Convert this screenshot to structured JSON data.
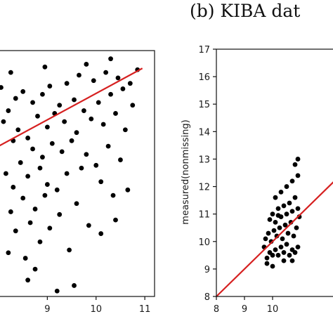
{
  "chart_data": [
    {
      "type": "scatter",
      "panel": "left",
      "title": "",
      "xlabel": "",
      "ylabel": "",
      "xlim": [
        8.0,
        11.2
      ],
      "ylim": [
        8.2,
        17.2
      ],
      "x_ticks": [
        9,
        10,
        11
      ],
      "y_ticks": [],
      "grid": false,
      "colors": {
        "points": "#000000",
        "fit_line": "#d62020"
      },
      "fit_line": [
        [
          8.0,
          13.7
        ],
        [
          10.95,
          16.55
        ]
      ],
      "series": [
        {
          "points": [
            [
              8.05,
              15.85
            ],
            [
              8.1,
              14.6
            ],
            [
              8.15,
              12.7
            ],
            [
              8.2,
              9.8
            ],
            [
              8.2,
              15.0
            ],
            [
              8.25,
              11.3
            ],
            [
              8.3,
              13.9
            ],
            [
              8.3,
              12.2
            ],
            [
              8.35,
              15.45
            ],
            [
              8.35,
              10.6
            ],
            [
              8.4,
              14.3
            ],
            [
              8.45,
              13.1
            ],
            [
              8.5,
              11.8
            ],
            [
              8.5,
              15.7
            ],
            [
              8.55,
              9.6
            ],
            [
              8.6,
              14.0
            ],
            [
              8.6,
              12.6
            ],
            [
              8.65,
              10.9
            ],
            [
              8.7,
              15.3
            ],
            [
              8.7,
              13.6
            ],
            [
              8.75,
              11.4
            ],
            [
              8.8,
              14.8
            ],
            [
              8.85,
              12.9
            ],
            [
              8.85,
              10.2
            ],
            [
              8.9,
              15.6
            ],
            [
              8.9,
              13.3
            ],
            [
              8.95,
              11.9
            ],
            [
              9.0,
              14.4
            ],
            [
              9.0,
              12.3
            ],
            [
              9.05,
              15.9
            ],
            [
              9.05,
              10.7
            ],
            [
              9.1,
              13.8
            ],
            [
              9.15,
              14.9
            ],
            [
              9.2,
              12.1
            ],
            [
              9.25,
              15.2
            ],
            [
              9.25,
              11.2
            ],
            [
              9.3,
              13.5
            ],
            [
              9.35,
              14.6
            ],
            [
              9.4,
              16.0
            ],
            [
              9.4,
              12.7
            ],
            [
              9.45,
              9.9
            ],
            [
              9.5,
              13.9
            ],
            [
              9.55,
              15.4
            ],
            [
              9.6,
              11.6
            ],
            [
              9.6,
              14.2
            ],
            [
              9.65,
              16.3
            ],
            [
              9.7,
              12.9
            ],
            [
              9.75,
              15.0
            ],
            [
              9.8,
              13.4
            ],
            [
              9.85,
              10.8
            ],
            [
              9.9,
              14.7
            ],
            [
              9.95,
              16.1
            ],
            [
              10.0,
              13.0
            ],
            [
              10.05,
              15.3
            ],
            [
              10.1,
              12.4
            ],
            [
              10.15,
              14.5
            ],
            [
              10.2,
              16.4
            ],
            [
              10.25,
              13.7
            ],
            [
              10.3,
              15.6
            ],
            [
              10.35,
              11.9
            ],
            [
              10.4,
              14.9
            ],
            [
              10.45,
              16.2
            ],
            [
              10.5,
              13.2
            ],
            [
              10.55,
              15.8
            ],
            [
              10.6,
              14.3
            ],
            [
              10.7,
              16.0
            ],
            [
              10.75,
              15.2
            ],
            [
              10.85,
              16.5
            ],
            [
              9.2,
              8.4
            ],
            [
              8.6,
              8.8
            ],
            [
              8.75,
              9.2
            ],
            [
              9.55,
              8.6
            ],
            [
              10.1,
              10.5
            ],
            [
              10.4,
              11.0
            ],
            [
              10.65,
              12.1
            ],
            [
              8.25,
              16.4
            ],
            [
              8.95,
              16.6
            ],
            [
              9.8,
              16.7
            ],
            [
              10.3,
              16.9
            ]
          ]
        }
      ]
    },
    {
      "type": "scatter",
      "panel": "right",
      "title": "(b) KIBA dat",
      "xlabel": "",
      "ylabel": "measured(nonmissing)",
      "xlim": [
        8,
        12.5
      ],
      "ylim": [
        8,
        17
      ],
      "x_ticks": [
        8,
        9,
        10
      ],
      "y_ticks": [
        8,
        9,
        10,
        11,
        12,
        13,
        14,
        15,
        16,
        17
      ],
      "grid": false,
      "colors": {
        "points": "#000000",
        "fit_line": "#d62020"
      },
      "fit_line": [
        [
          8,
          8
        ],
        [
          12.5,
          12.5
        ]
      ],
      "series": [
        {
          "points": [
            [
              9.8,
              9.4
            ],
            [
              9.9,
              9.6
            ],
            [
              10.0,
              9.5
            ],
            [
              10.1,
              9.7
            ],
            [
              10.2,
              9.5
            ],
            [
              10.3,
              9.8
            ],
            [
              10.4,
              9.6
            ],
            [
              10.5,
              9.9
            ],
            [
              10.6,
              9.5
            ],
            [
              10.7,
              9.7
            ],
            [
              10.8,
              9.6
            ],
            [
              9.75,
              10.1
            ],
            [
              9.85,
              10.3
            ],
            [
              9.95,
              10.0
            ],
            [
              10.05,
              10.4
            ],
            [
              10.15,
              10.2
            ],
            [
              10.25,
              10.5
            ],
            [
              10.35,
              10.1
            ],
            [
              10.45,
              10.6
            ],
            [
              10.55,
              10.3
            ],
            [
              10.65,
              10.7
            ],
            [
              10.75,
              10.2
            ],
            [
              10.85,
              10.5
            ],
            [
              9.9,
              10.8
            ],
            [
              10.0,
              11.0
            ],
            [
              10.1,
              10.7
            ],
            [
              10.2,
              11.2
            ],
            [
              10.3,
              10.9
            ],
            [
              10.4,
              11.3
            ],
            [
              10.5,
              11.0
            ],
            [
              10.6,
              11.4
            ],
            [
              10.7,
              11.1
            ],
            [
              10.8,
              11.6
            ],
            [
              10.9,
              11.2
            ],
            [
              10.1,
              11.6
            ],
            [
              10.3,
              11.8
            ],
            [
              10.5,
              12.0
            ],
            [
              10.7,
              12.2
            ],
            [
              10.9,
              12.4
            ],
            [
              10.8,
              12.8
            ],
            [
              10.9,
              13.0
            ],
            [
              10.7,
              9.3
            ],
            [
              10.4,
              9.3
            ],
            [
              10.9,
              9.8
            ],
            [
              10.95,
              10.9
            ],
            [
              10.2,
              10.95
            ],
            [
              9.7,
              9.8
            ],
            [
              9.8,
              9.2
            ],
            [
              10.0,
              9.1
            ]
          ]
        }
      ]
    }
  ]
}
